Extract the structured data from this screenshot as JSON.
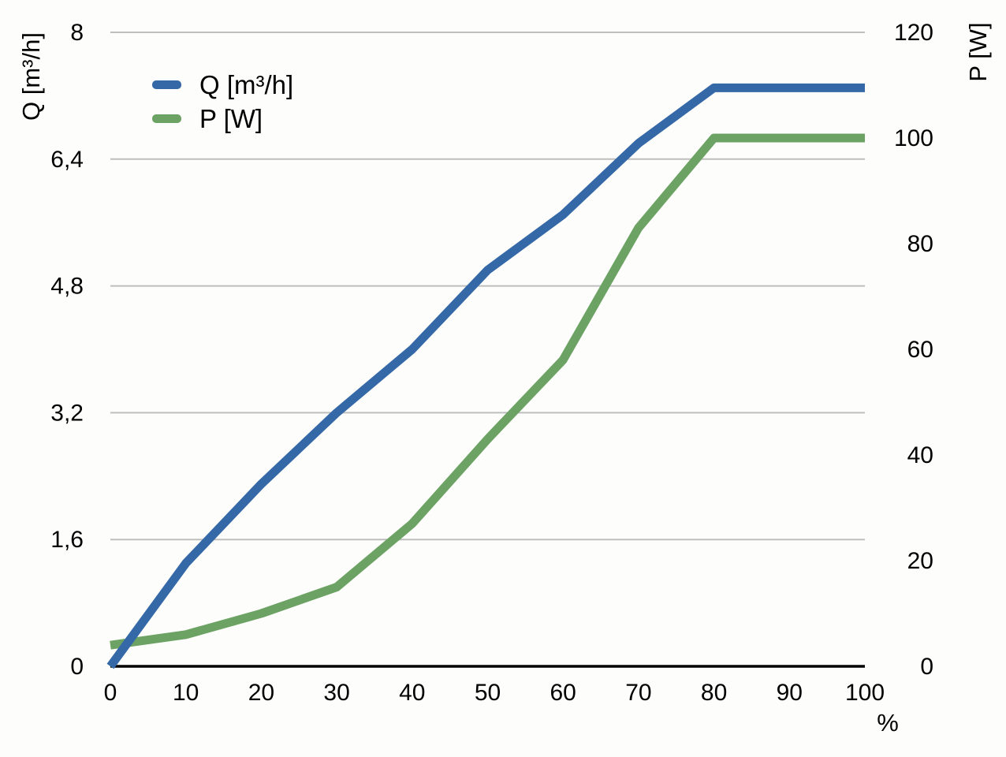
{
  "chart_data": {
    "type": "line",
    "title": "",
    "grid": "horizontal",
    "legend_position": "top-left-inside",
    "x_axis": {
      "label": "%",
      "range": [
        0,
        100
      ],
      "tick_values": [
        0,
        10,
        20,
        30,
        40,
        50,
        60,
        70,
        80,
        90,
        100
      ],
      "ticks": [
        "0",
        "10",
        "20",
        "30",
        "40",
        "50",
        "60",
        "70",
        "80",
        "90",
        "100"
      ]
    },
    "y_left_axis": {
      "label": "Q [m³/h]",
      "range": [
        0,
        8
      ],
      "tick_values": [
        0,
        1.6,
        3.2,
        4.8,
        6.4,
        8
      ],
      "ticks": [
        "0",
        "1,6",
        "3,2",
        "4,8",
        "6,4",
        "8"
      ]
    },
    "y_right_axis": {
      "label": "P [W]",
      "range": [
        0,
        120
      ],
      "tick_values": [
        0,
        20,
        40,
        60,
        80,
        100,
        120
      ],
      "ticks": [
        "0",
        "20",
        "40",
        "60",
        "80",
        "100",
        "120"
      ]
    },
    "x": [
      0,
      10,
      20,
      30,
      40,
      50,
      60,
      70,
      80,
      90,
      100
    ],
    "series": [
      {
        "name": "Q [m³/h]",
        "axis": "left",
        "color": "#3568a7",
        "values": [
          0,
          1.3,
          2.3,
          3.2,
          4.0,
          5.0,
          5.7,
          6.6,
          7.3,
          7.3,
          7.3
        ]
      },
      {
        "name": "P [W]",
        "axis": "right",
        "color": "#6ca263",
        "values": [
          4,
          6,
          10,
          15,
          27,
          43,
          58,
          83,
          100,
          100,
          100
        ]
      }
    ],
    "colors": {
      "background": "#fdfefb",
      "gridline": "#bebebe",
      "axis_line": "#000000",
      "text": "#000000"
    }
  }
}
